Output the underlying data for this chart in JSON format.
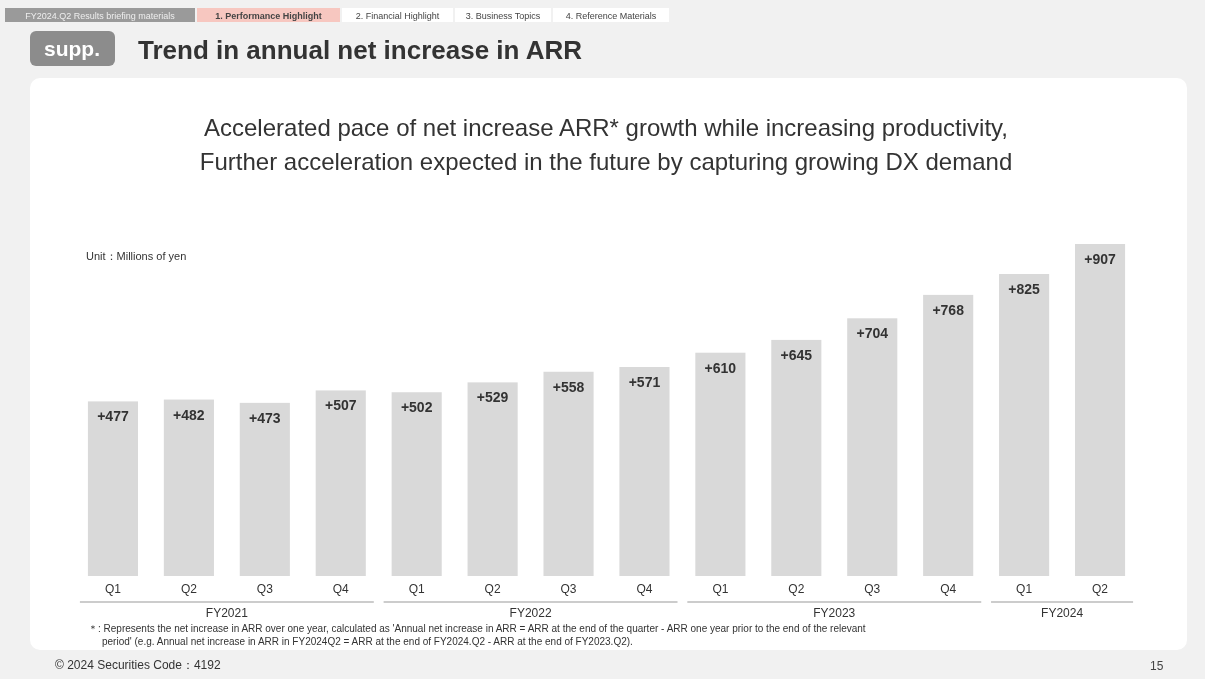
{
  "chart_data": {
    "type": "bar",
    "title": "Trend in annual net increase in ARR",
    "subtitle": "Accelerated pace of net increase ARR* growth while increasing productivity,\nFurther acceleration expected in the future by capturing growing DX demand",
    "categories": [
      "Q1",
      "Q2",
      "Q3",
      "Q4",
      "Q1",
      "Q2",
      "Q3",
      "Q4",
      "Q1",
      "Q2",
      "Q3",
      "Q4",
      "Q1",
      "Q2"
    ],
    "values": [
      477,
      482,
      473,
      507,
      502,
      529,
      558,
      571,
      610,
      645,
      704,
      768,
      825,
      907
    ],
    "value_labels": [
      "+477",
      "+482",
      "+473",
      "+507",
      "+502",
      "+529",
      "+558",
      "+571",
      "+610",
      "+645",
      "+704",
      "+768",
      "+825",
      "+907"
    ],
    "color": "#d9d9d9",
    "tick_labels": "x",
    "grid": false,
    "annotations": [
      "Unit：Millions of yen",
      "FY2021",
      "FY2022",
      "FY2023",
      "FY2024",
      "＊: Represents the net increase in ARR over one year, calculated as 'Annual net increase in ARR = ARR at the end of the quarter - ARR one year prior to the end of the relevant period' (e.g. Annual net increase in ARR in FY2024Q2 = ARR at the end of FY2024.Q2 - ARR at the end of FY2023.Q2).",
      "© 2024  Securities Code：4192",
      "15",
      "FY2024.Q2 Results briefing materials",
      "1. Performance Highlight",
      "2. Financial Highlight",
      "3. Business Topics",
      "4. Reference Materials",
      "supp."
    ]
  }
}
